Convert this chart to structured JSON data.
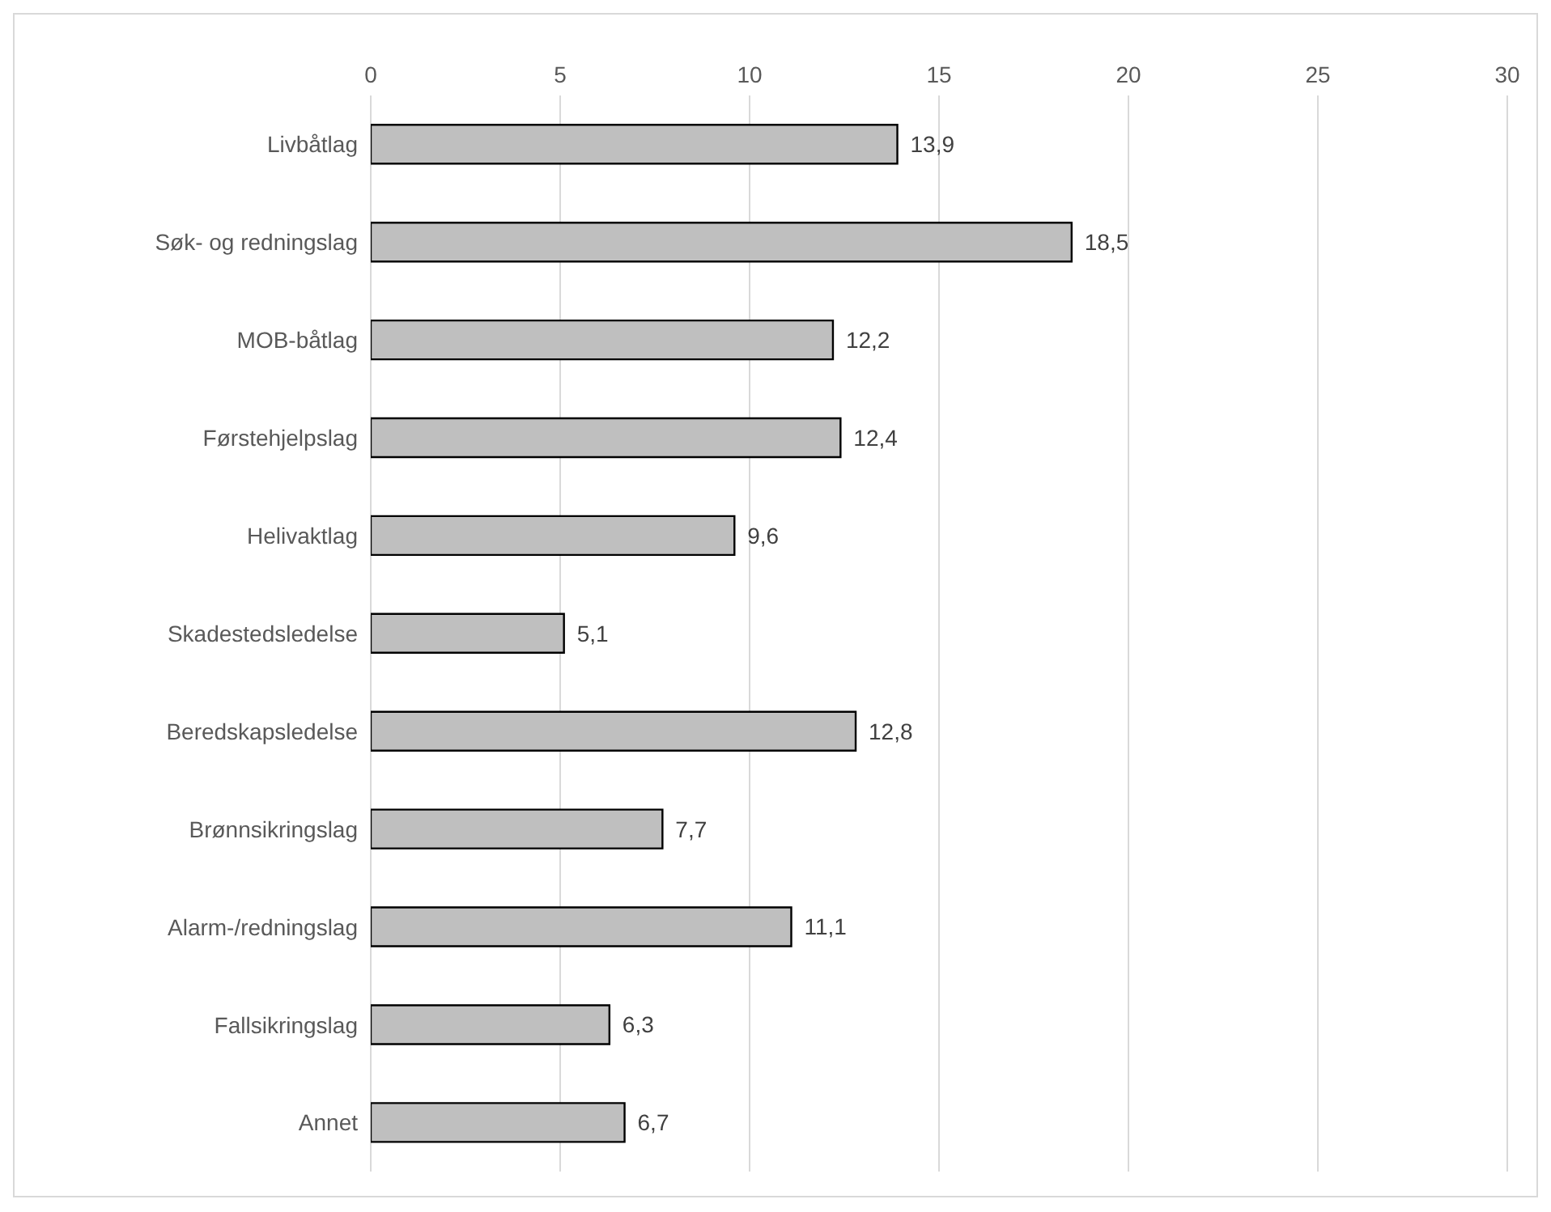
{
  "chart_data": {
    "type": "bar",
    "orientation": "horizontal",
    "categories": [
      "Livbåtlag",
      "Søk- og redningslag",
      "MOB-båtlag",
      "Førstehjelpslag",
      "Helivaktlag",
      "Skadestedsledelse",
      "Beredskapsledelse",
      "Brønnsikringslag",
      "Alarm-/redningslag",
      "Fallsikringslag",
      "Annet"
    ],
    "values": [
      13.9,
      18.5,
      12.2,
      12.4,
      9.6,
      5.1,
      12.8,
      7.7,
      11.1,
      6.3,
      6.7
    ],
    "value_labels": [
      "13,9",
      "18,5",
      "12,2",
      "12,4",
      "9,6",
      "5,1",
      "12,8",
      "7,7",
      "11,1",
      "6,3",
      "6,7"
    ],
    "color": "#bfbfbf",
    "xlim": [
      0,
      30
    ],
    "xticks": [
      0,
      5,
      10,
      15,
      20,
      25,
      30
    ],
    "grid": "x"
  }
}
